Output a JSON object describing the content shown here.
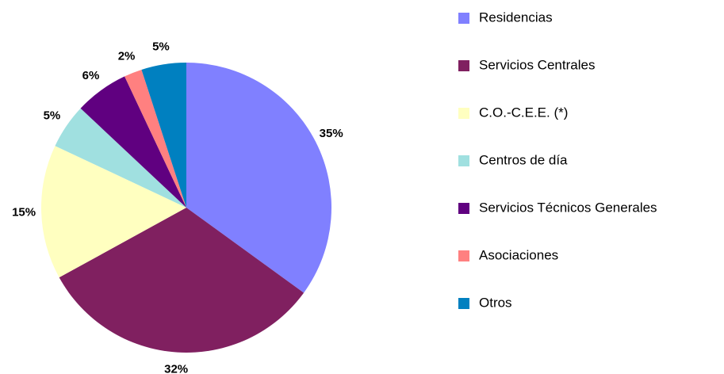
{
  "chart_data": {
    "type": "pie",
    "categories": [
      "Residencias",
      "Servicios Centrales",
      "C.O.-C.E.E. (*)",
      "Centros de día",
      "Servicios Técnicos Generales",
      "Asociaciones",
      "Otros"
    ],
    "values": [
      35,
      32,
      15,
      5,
      6,
      2,
      5
    ],
    "value_labels": [
      "35%",
      "32%",
      "15%",
      "5%",
      "6%",
      "2%",
      "5%"
    ],
    "colors": [
      "#8080ff",
      "#802060",
      "#ffffc0",
      "#a0e0e0",
      "#600080",
      "#ff8080",
      "#0080c0"
    ],
    "legend": "right"
  }
}
